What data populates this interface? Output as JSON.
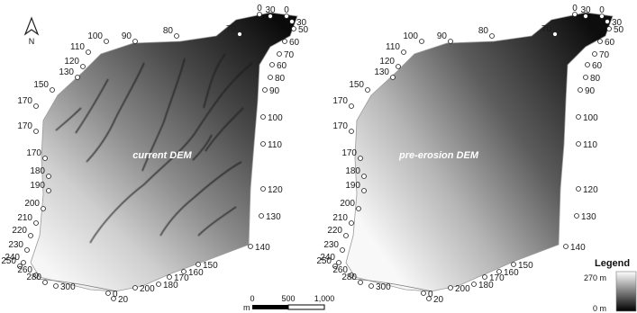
{
  "maps": [
    {
      "title": "current DEM",
      "labels": [
        "0",
        "30",
        "0",
        "60",
        "70",
        "80",
        "90",
        "100",
        "110",
        "120",
        "130",
        "150",
        "170",
        "170",
        "170",
        "180",
        "190",
        "200",
        "210",
        "220",
        "230",
        "240",
        "250",
        "260",
        "280",
        "300",
        "0",
        "20",
        "200",
        "180",
        "170",
        "160",
        "150",
        "140",
        "130",
        "120",
        "110",
        "100",
        "90",
        "80",
        "70",
        "60",
        "50",
        "30"
      ]
    },
    {
      "title": "pre-erosion DEM",
      "labels": [
        "0",
        "30",
        "0",
        "60",
        "70",
        "80",
        "90",
        "100",
        "110",
        "120",
        "130",
        "150",
        "170",
        "170",
        "170",
        "180",
        "190",
        "200",
        "210",
        "220",
        "230",
        "240",
        "250",
        "260",
        "280",
        "300",
        "0",
        "20",
        "200",
        "180",
        "170",
        "160",
        "150",
        "140",
        "130",
        "120",
        "110",
        "100",
        "90",
        "80",
        "70",
        "60",
        "50",
        "30"
      ]
    }
  ],
  "north": {
    "label": "N",
    "icon": "north-arrow-icon"
  },
  "scale_bar": {
    "ticks": [
      "0",
      "500",
      "1,000"
    ],
    "unit": "m"
  },
  "legend": {
    "title": "Legend",
    "max": "270 m",
    "min": "0 m"
  }
}
